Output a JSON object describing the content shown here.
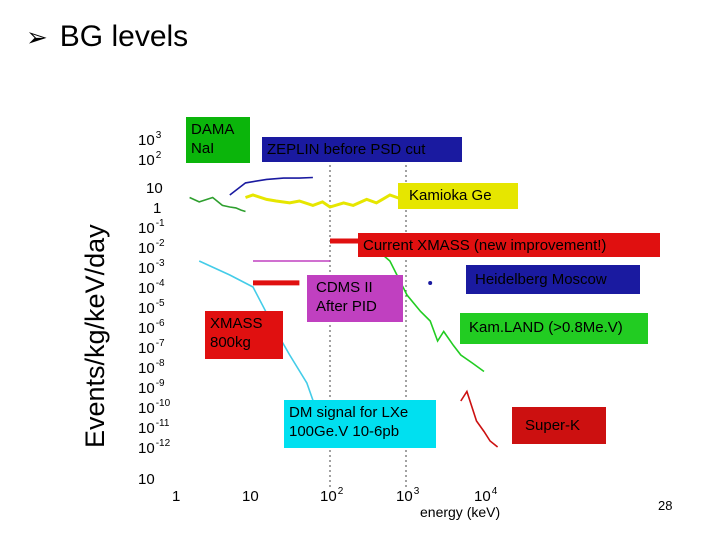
{
  "slide": {
    "title": "BG levels",
    "bullet_icon": "arrow-bullet-icon",
    "page_number": "28"
  },
  "chart_data": {
    "type": "line",
    "title": "BG levels",
    "xlabel": "energy (keV)",
    "ylabel": "Events/kg/keV/day",
    "x_scale": "log",
    "y_scale": "log",
    "xlim": [
      1,
      10000
    ],
    "ylim": [
      1e-12,
      1000
    ],
    "x_ticks": [
      {
        "base": "1",
        "exp": ""
      },
      {
        "base": "10",
        "exp": ""
      },
      {
        "base": "10",
        "exp": "2"
      },
      {
        "base": "10",
        "exp": "3"
      },
      {
        "base": "10",
        "exp": "4"
      }
    ],
    "y_ticks": [
      {
        "base": "10",
        "exp": "3"
      },
      {
        "base": "10",
        "exp": "2"
      },
      {
        "base": "10",
        "exp": ""
      },
      {
        "base": "1",
        "exp": ""
      },
      {
        "base": "10",
        "exp": "-1"
      },
      {
        "base": "10",
        "exp": "-2"
      },
      {
        "base": "10",
        "exp": "-3"
      },
      {
        "base": "10",
        "exp": "-4"
      },
      {
        "base": "10",
        "exp": "-5"
      },
      {
        "base": "10",
        "exp": "-6"
      },
      {
        "base": "10",
        "exp": "-7"
      },
      {
        "base": "10",
        "exp": "-8"
      },
      {
        "base": "10",
        "exp": "-9"
      },
      {
        "base": "10",
        "exp": "-10"
      },
      {
        "base": "10",
        "exp": "-11"
      },
      {
        "base": "10",
        "exp": "-12"
      },
      {
        "base": "10",
        "exp": ""
      }
    ],
    "grid": "dotted vertical lines at 10^2 and 10^3",
    "series": [
      {
        "name": "DAMA NaI",
        "color": "#2e9f2e",
        "x": [
          1.5,
          2,
          3,
          4,
          5,
          6,
          7,
          8
        ],
        "y": [
          1.5,
          0.9,
          1.5,
          0.6,
          0.5,
          0.45,
          0.35,
          0.3
        ]
      },
      {
        "name": "ZEPLIN before PSD cut",
        "color": "#1a1aa0",
        "x": [
          5,
          8,
          15,
          25,
          40,
          60
        ],
        "y": [
          2,
          8,
          12,
          14,
          14,
          15
        ]
      },
      {
        "name": "Kamioka Ge",
        "color": "#e6e600",
        "x": [
          8,
          10,
          15,
          20,
          30,
          40,
          60,
          80,
          100,
          150,
          200,
          300,
          400,
          600,
          1000
        ],
        "y": [
          1.5,
          2,
          1.2,
          1,
          0.8,
          1,
          0.6,
          0.9,
          0.5,
          0.8,
          0.6,
          1.2,
          0.8,
          2,
          1
        ]
      },
      {
        "name": "Current XMASS (new improvement!)",
        "color": "#e01010",
        "x": [
          100,
          250
        ],
        "y": [
          0.01,
          0.01
        ]
      },
      {
        "name": "XMASS 800kg",
        "color": "#e01010",
        "x": [
          10,
          40
        ],
        "y": [
          8e-05,
          8e-05
        ]
      },
      {
        "name": "Heidelberg Moscow",
        "color": "#1a1aa0",
        "x": [
          2000
        ],
        "y": [
          8e-05
        ]
      },
      {
        "name": "CDMS II After PID",
        "color": "#c040c0",
        "x": [
          10,
          100
        ],
        "y": [
          0.001,
          0.001
        ]
      },
      {
        "name": "Kam.LAND (>0.8MeV)",
        "color": "#22cc22",
        "x": [
          300,
          600,
          1000,
          1500,
          2000,
          2500,
          3000,
          4000,
          5000,
          7000,
          10000
        ],
        "y": [
          0.01,
          0.001,
          2e-05,
          3e-06,
          1e-06,
          1e-07,
          3e-07,
          6e-08,
          2e-08,
          8e-09,
          3e-09
        ]
      },
      {
        "name": "DM signal for LXe 100GeV 10-6pb",
        "color": "#44cce8",
        "x": [
          2,
          5,
          10,
          20,
          30,
          50,
          70,
          100
        ],
        "y": [
          0.001,
          0.0002,
          5e-05,
          3e-07,
          2e-08,
          8e-10,
          2e-11,
          1e-12
        ]
      },
      {
        "name": "Super-K",
        "color": "#cc1010",
        "x": [
          5000,
          6000,
          8000,
          10000,
          12000,
          15000
        ],
        "y": [
          1e-10,
          3e-10,
          1e-11,
          3e-12,
          1e-12,
          5e-13
        ]
      }
    ],
    "annotations": [
      {
        "id": "dama",
        "lines": [
          "DAMA",
          "NaI"
        ],
        "bg": "#0bb50b"
      },
      {
        "id": "zeplin",
        "lines": [
          "ZEPLIN before PSD cut"
        ],
        "bg": "#1a1aa0"
      },
      {
        "id": "kamioka",
        "lines": [
          "Kamioka Ge"
        ],
        "bg": "#e6e600"
      },
      {
        "id": "xmass-current",
        "lines": [
          "Current XMASS (new improvement!)"
        ],
        "bg": "#e01010"
      },
      {
        "id": "heidelberg",
        "lines": [
          "Heidelberg Moscow"
        ],
        "bg": "#1a1aa0"
      },
      {
        "id": "cdms",
        "lines": [
          "CDMS II",
          "After PID"
        ],
        "bg": "#c040c0"
      },
      {
        "id": "xmass800",
        "lines": [
          "XMASS",
          "800kg"
        ],
        "bg": "#e01010"
      },
      {
        "id": "kamland",
        "lines": [
          "Kam.LAND (>0.8Me.V)"
        ],
        "bg": "#22cc22"
      },
      {
        "id": "dm",
        "lines": [
          "DM signal for LXe",
          "100Ge.V 10-6pb"
        ],
        "bg": "#00e0f0"
      },
      {
        "id": "superk",
        "lines": [
          "Super-K"
        ],
        "bg": "#cc1010"
      }
    ]
  }
}
